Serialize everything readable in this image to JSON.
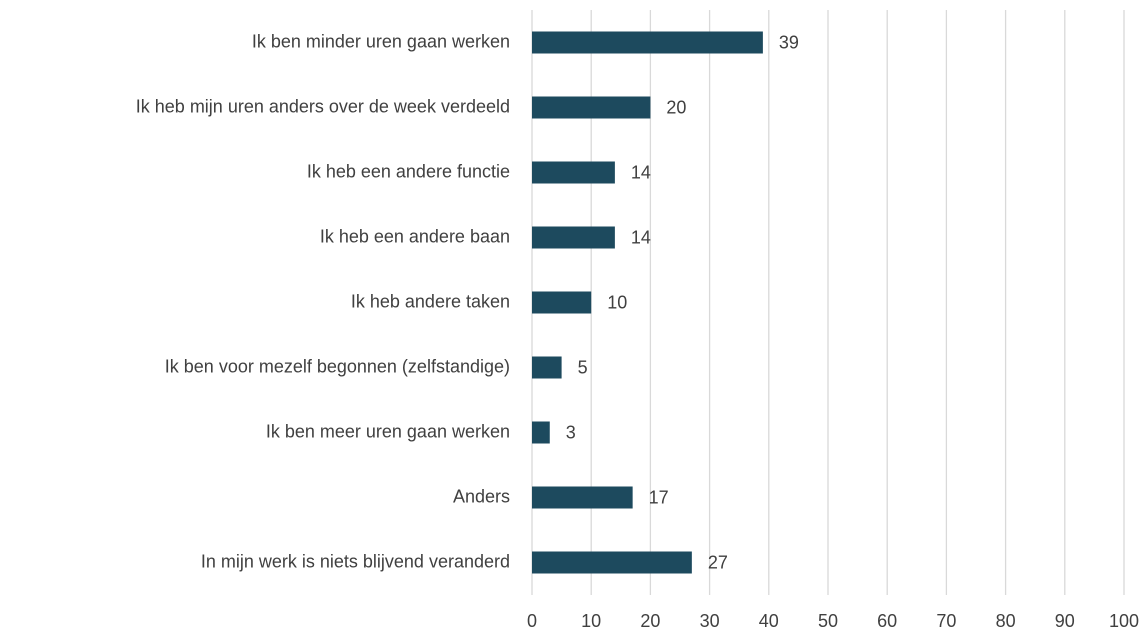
{
  "chart_data": {
    "type": "bar",
    "orientation": "horizontal",
    "categories": [
      "Ik ben minder uren gaan werken",
      "Ik heb mijn uren anders over de week verdeeld",
      "Ik heb een andere functie",
      "Ik heb een andere baan",
      "Ik heb andere taken",
      "Ik ben voor mezelf begonnen (zelfstandige)",
      "Ik ben meer uren gaan werken",
      "Anders",
      "In mijn werk is niets blijvend veranderd"
    ],
    "values": [
      39,
      20,
      14,
      14,
      10,
      5,
      3,
      17,
      27
    ],
    "color": "#1d4a5e",
    "xlim": [
      0,
      100
    ],
    "xticks": [
      0,
      10,
      20,
      30,
      40,
      50,
      60,
      70,
      80,
      90,
      100
    ],
    "grid": true
  }
}
